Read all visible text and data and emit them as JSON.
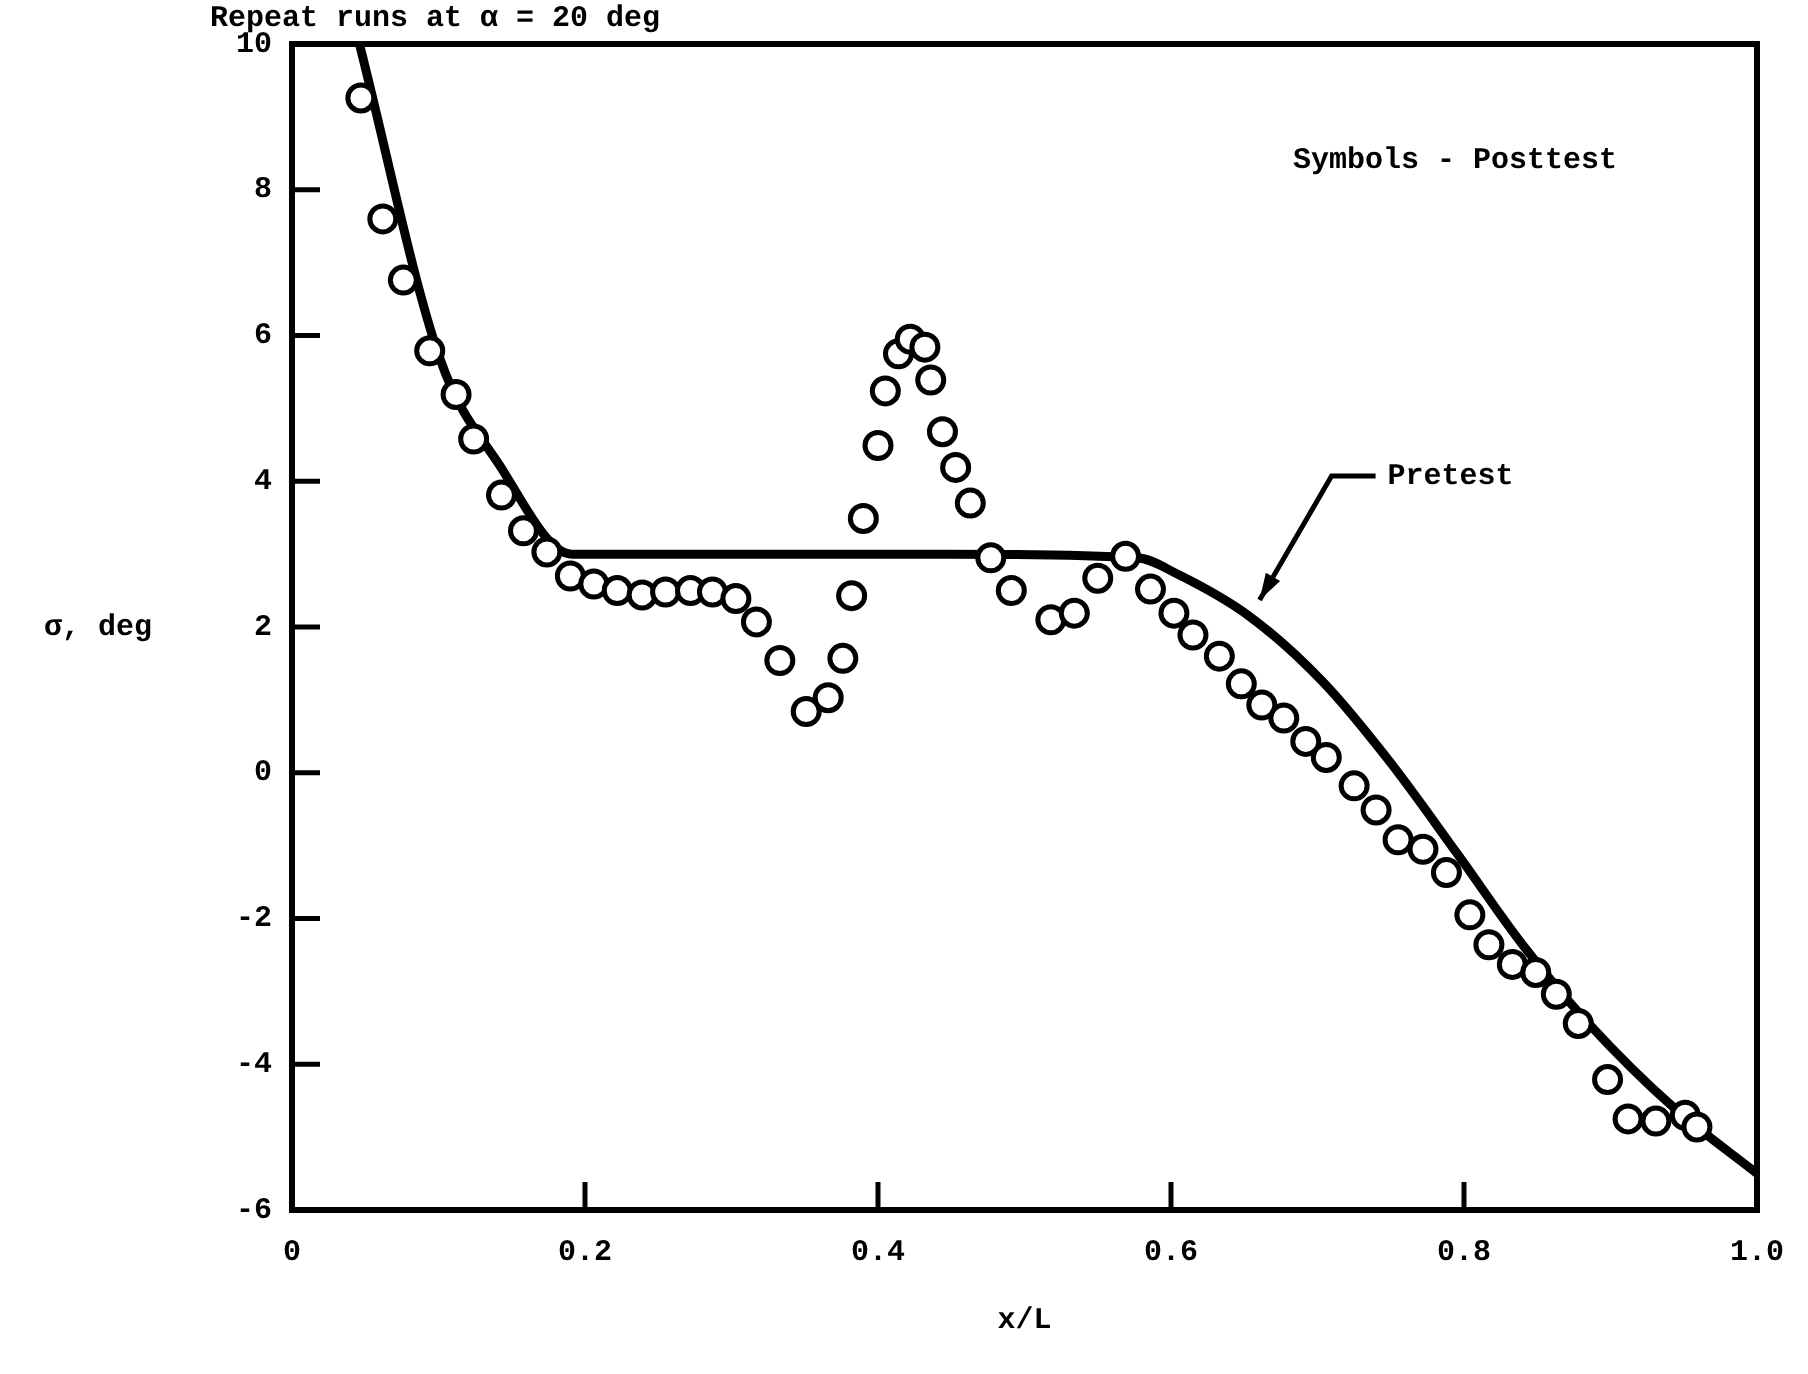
{
  "chart_data": {
    "type": "scatter",
    "title": "Repeat runs at α = 20 deg",
    "xlabel": "x/L",
    "ylabel": "σ, deg",
    "xlim": [
      0,
      1
    ],
    "xticks": [
      0,
      0.2,
      0.4,
      0.6,
      0.8,
      {
        "value": 1,
        "label": "1.0"
      }
    ],
    "ylim": [
      -6,
      10
    ],
    "yticks": [
      -6,
      -4,
      -2,
      0,
      2,
      4,
      6,
      8,
      10
    ],
    "grid": false,
    "legend": false,
    "annotations": [
      "Symbols - Posttest",
      {
        "text": "Pretest",
        "x": 0.655,
        "y": 2.15
      }
    ],
    "series": [
      {
        "marker": "circle",
        "color": "#000000",
        "x": [
          0.047,
          0.062,
          0.076,
          0.094,
          0.112,
          0.124,
          0.143,
          0.158,
          0.174,
          0.19,
          0.206,
          0.222,
          0.239,
          0.255,
          0.272,
          0.287,
          0.303,
          0.317,
          0.333,
          0.351,
          0.366,
          0.376,
          0.382,
          0.39,
          0.4,
          0.405,
          0.414,
          0.422,
          0.432,
          0.436,
          0.444,
          0.453,
          0.463,
          0.477,
          0.491,
          0.518,
          0.534,
          0.55,
          0.569,
          0.586,
          0.602,
          0.615,
          0.633,
          0.648,
          0.662,
          0.677,
          0.692,
          0.706,
          0.725,
          0.74,
          0.755,
          0.772,
          0.788,
          0.804,
          0.817,
          0.833,
          0.849,
          0.863,
          0.878,
          0.898,
          0.912,
          0.931,
          0.951,
          0.959
        ],
        "values": [
          9.26,
          7.6,
          6.76,
          5.79,
          5.19,
          4.58,
          3.81,
          3.32,
          3.03,
          2.7,
          2.59,
          2.5,
          2.44,
          2.48,
          2.5,
          2.48,
          2.39,
          2.07,
          1.54,
          0.84,
          1.03,
          1.57,
          2.43,
          3.49,
          4.49,
          5.24,
          5.75,
          5.95,
          5.84,
          5.39,
          4.68,
          4.19,
          3.7,
          2.95,
          2.5,
          2.1,
          2.19,
          2.67,
          2.97,
          2.52,
          2.19,
          1.89,
          1.6,
          1.22,
          0.93,
          0.75,
          0.43,
          0.21,
          -0.18,
          -0.51,
          -0.92,
          -1.05,
          -1.37,
          -1.95,
          -2.36,
          -2.63,
          -2.74,
          -3.04,
          -3.44,
          -4.21,
          -4.75,
          -4.78,
          -4.7,
          -4.86
        ]
      },
      {
        "type": "line",
        "marker": "none",
        "line_style": "solid",
        "color": "#000000",
        "x": [
          0.046,
          0.101,
          0.141,
          0.191,
          0.3,
          0.45,
          0.577,
          0.604,
          0.654,
          0.704,
          0.749,
          0.795,
          0.84,
          0.885,
          0.944,
          1.0
        ],
        "values": [
          10,
          5.68,
          4.24,
          3.0,
          3.0,
          3.0,
          2.95,
          2.73,
          2.14,
          1.24,
          0.16,
          -1.1,
          -2.36,
          -3.44,
          -4.61,
          -5.5
        ]
      }
    ]
  }
}
